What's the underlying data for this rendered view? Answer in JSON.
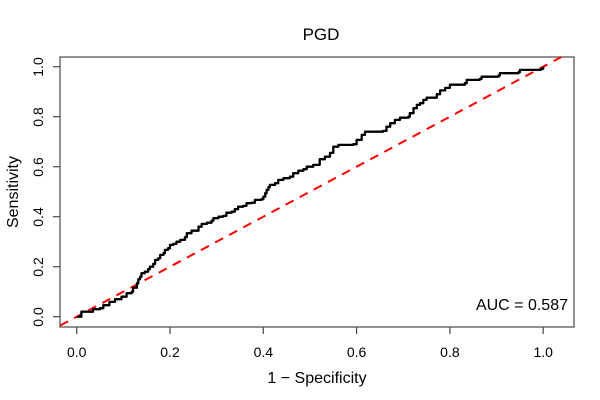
{
  "page": {
    "background": "#ffffff"
  },
  "chart_data": {
    "type": "line",
    "title": "PGD",
    "xlabel": "1 − Specificity",
    "ylabel": "Sensitivity",
    "annotation": "AUC = 0.587",
    "auc": 0.587,
    "xlim": [
      0,
      1
    ],
    "ylim": [
      0,
      1
    ],
    "grid": false,
    "legend_position": "none",
    "x_tick_values": [
      0.0,
      0.2,
      0.4,
      0.6,
      0.8,
      1.0
    ],
    "x_tick_labels": [
      "0.0",
      "0.2",
      "0.4",
      "0.6",
      "0.8",
      "1.0"
    ],
    "y_tick_values": [
      0.0,
      0.2,
      0.4,
      0.6,
      0.8,
      1.0
    ],
    "y_tick_labels": [
      "0.0",
      "0.2",
      "0.4",
      "0.6",
      "0.8",
      "1.0"
    ],
    "axis_color": "#4a4a4a",
    "series": [
      {
        "name": "ROC curve",
        "style": "step",
        "color": "#000000",
        "points": [
          [
            0,
            0
          ],
          [
            0.01,
            0.02
          ],
          [
            0.028,
            0.02
          ],
          [
            0.035,
            0.03
          ],
          [
            0.05,
            0.034
          ],
          [
            0.057,
            0.046
          ],
          [
            0.064,
            0.046
          ],
          [
            0.07,
            0.059
          ],
          [
            0.078,
            0.059
          ],
          [
            0.082,
            0.07
          ],
          [
            0.093,
            0.07
          ],
          [
            0.096,
            0.08
          ],
          [
            0.103,
            0.08
          ],
          [
            0.107,
            0.094
          ],
          [
            0.118,
            0.1
          ],
          [
            0.121,
            0.116
          ],
          [
            0.129,
            0.134
          ],
          [
            0.132,
            0.15
          ],
          [
            0.136,
            0.16
          ],
          [
            0.139,
            0.174
          ],
          [
            0.146,
            0.18
          ],
          [
            0.153,
            0.19
          ],
          [
            0.157,
            0.2
          ],
          [
            0.164,
            0.211
          ],
          [
            0.168,
            0.227
          ],
          [
            0.175,
            0.234
          ],
          [
            0.179,
            0.247
          ],
          [
            0.186,
            0.254
          ],
          [
            0.189,
            0.267
          ],
          [
            0.196,
            0.274
          ],
          [
            0.2,
            0.287
          ],
          [
            0.207,
            0.291
          ],
          [
            0.214,
            0.3
          ],
          [
            0.222,
            0.307
          ],
          [
            0.232,
            0.318
          ],
          [
            0.236,
            0.334
          ],
          [
            0.246,
            0.344
          ],
          [
            0.261,
            0.36
          ],
          [
            0.268,
            0.371
          ],
          [
            0.279,
            0.376
          ],
          [
            0.289,
            0.384
          ],
          [
            0.293,
            0.394
          ],
          [
            0.304,
            0.4
          ],
          [
            0.314,
            0.403
          ],
          [
            0.321,
            0.416
          ],
          [
            0.332,
            0.42
          ],
          [
            0.339,
            0.43
          ],
          [
            0.346,
            0.44
          ],
          [
            0.357,
            0.443
          ],
          [
            0.364,
            0.454
          ],
          [
            0.375,
            0.456
          ],
          [
            0.382,
            0.467
          ],
          [
            0.396,
            0.47
          ],
          [
            0.4,
            0.48
          ],
          [
            0.404,
            0.494
          ],
          [
            0.407,
            0.507
          ],
          [
            0.411,
            0.518
          ],
          [
            0.414,
            0.527
          ],
          [
            0.425,
            0.534
          ],
          [
            0.432,
            0.547
          ],
          [
            0.443,
            0.554
          ],
          [
            0.457,
            0.56
          ],
          [
            0.464,
            0.574
          ],
          [
            0.475,
            0.584
          ],
          [
            0.486,
            0.59
          ],
          [
            0.493,
            0.6
          ],
          [
            0.507,
            0.607
          ],
          [
            0.521,
            0.63
          ],
          [
            0.532,
            0.64
          ],
          [
            0.543,
            0.655
          ],
          [
            0.55,
            0.68
          ],
          [
            0.561,
            0.687
          ],
          [
            0.593,
            0.69
          ],
          [
            0.6,
            0.707
          ],
          [
            0.611,
            0.727
          ],
          [
            0.618,
            0.74
          ],
          [
            0.657,
            0.743
          ],
          [
            0.664,
            0.76
          ],
          [
            0.672,
            0.774
          ],
          [
            0.682,
            0.787
          ],
          [
            0.693,
            0.796
          ],
          [
            0.711,
            0.8
          ],
          [
            0.714,
            0.814
          ],
          [
            0.722,
            0.834
          ],
          [
            0.729,
            0.847
          ],
          [
            0.736,
            0.854
          ],
          [
            0.743,
            0.867
          ],
          [
            0.75,
            0.876
          ],
          [
            0.772,
            0.89
          ],
          [
            0.779,
            0.905
          ],
          [
            0.79,
            0.915
          ],
          [
            0.8,
            0.928
          ],
          [
            0.832,
            0.934
          ],
          [
            0.836,
            0.947
          ],
          [
            0.864,
            0.951
          ],
          [
            0.868,
            0.96
          ],
          [
            0.904,
            0.964
          ],
          [
            0.907,
            0.974
          ],
          [
            0.947,
            0.978
          ],
          [
            0.95,
            0.987
          ],
          [
            0.995,
            0.991
          ],
          [
            1,
            1
          ]
        ]
      },
      {
        "name": "Chance line",
        "style": "dashed",
        "color": "#ff0000",
        "points": [
          [
            0,
            0
          ],
          [
            1,
            1
          ]
        ]
      }
    ]
  }
}
